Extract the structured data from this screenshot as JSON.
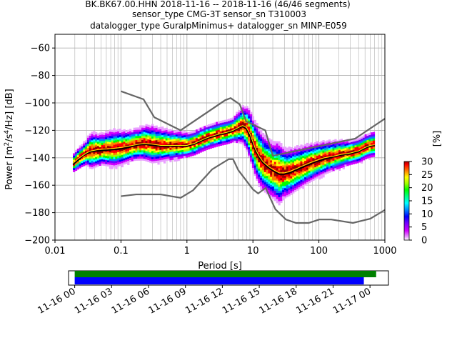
{
  "chart_data": {
    "type": "heatmap",
    "title_lines": [
      "BK.BK67.00.HHN   2018-11-16 -- 2018-11-16  (46/46 segments)",
      "sensor_type CMG-3T sensor_sn T310003",
      "datalogger_type GuralpMinimus+ datalogger_sn MINP-E059"
    ],
    "xlabel": "Period [s]",
    "ylabel_parts": [
      "Power [m",
      "2",
      "/s",
      "4",
      "/Hz] [dB]"
    ],
    "x_scale": "log",
    "xlim": [
      0.01,
      1000
    ],
    "ylim": [
      -200,
      -50
    ],
    "x_ticks": [
      {
        "value": 0.01,
        "label": "0.01"
      },
      {
        "value": 0.1,
        "label": "0.1"
      },
      {
        "value": 1,
        "label": "1"
      },
      {
        "value": 10,
        "label": "10"
      },
      {
        "value": 100,
        "label": "100"
      },
      {
        "value": 1000,
        "label": "1000"
      }
    ],
    "y_ticks": [
      {
        "value": -60,
        "label": "−60"
      },
      {
        "value": -80,
        "label": "−80"
      },
      {
        "value": -100,
        "label": "−100"
      },
      {
        "value": -120,
        "label": "−120"
      },
      {
        "value": -140,
        "label": "−140"
      },
      {
        "value": -160,
        "label": "−160"
      },
      {
        "value": -180,
        "label": "−180"
      },
      {
        "value": -200,
        "label": "−200"
      }
    ],
    "grid": true,
    "colorbar": {
      "label": "[%]",
      "range": [
        0,
        30
      ],
      "ticks": [
        {
          "value": 0,
          "label": "0"
        },
        {
          "value": 5,
          "label": "5"
        },
        {
          "value": 10,
          "label": "10"
        },
        {
          "value": 15,
          "label": "15"
        },
        {
          "value": 20,
          "label": "20"
        },
        {
          "value": 25,
          "label": "25"
        },
        {
          "value": 30,
          "label": "30"
        }
      ],
      "colormap": [
        "#ffffff",
        "#e9a0ff",
        "#d000ff",
        "#7000ff",
        "#0000ff",
        "#0080ff",
        "#00ffff",
        "#00ff80",
        "#00ff00",
        "#a0ff00",
        "#ffff00",
        "#ff8000",
        "#ff0000",
        "#990000"
      ]
    },
    "noise_models": {
      "high": [
        [
          0.1,
          -91.5
        ],
        [
          0.22,
          -97.4
        ],
        [
          0.32,
          -110.5
        ],
        [
          0.8,
          -120
        ],
        [
          3.8,
          -98
        ],
        [
          4.6,
          -96.5
        ],
        [
          6.3,
          -101
        ],
        [
          7.9,
          -113.5
        ],
        [
          15.4,
          -120
        ],
        [
          20,
          -138.5
        ],
        [
          354.8,
          -126
        ],
        [
          1000,
          -111.5
        ]
      ],
      "low": [
        [
          0.1,
          -168
        ],
        [
          0.17,
          -166.7
        ],
        [
          0.4,
          -166.7
        ],
        [
          0.8,
          -169.2
        ],
        [
          1.24,
          -163.7
        ],
        [
          2.4,
          -148.5
        ],
        [
          4.3,
          -141
        ],
        [
          5,
          -141
        ],
        [
          6,
          -149
        ],
        [
          10,
          -163
        ],
        [
          12,
          -166
        ],
        [
          15.6,
          -162
        ],
        [
          21.9,
          -177.5
        ],
        [
          31.6,
          -185
        ],
        [
          45,
          -187.5
        ],
        [
          70,
          -187.5
        ],
        [
          101,
          -185
        ],
        [
          154,
          -185
        ],
        [
          328,
          -187.5
        ],
        [
          600,
          -184.4
        ],
        [
          1000,
          -178
        ]
      ]
    },
    "mean_curve": [
      [
        0.0187,
        -145
      ],
      [
        0.022,
        -142
      ],
      [
        0.026,
        -139
      ],
      [
        0.03,
        -137
      ],
      [
        0.035,
        -135.5
      ],
      [
        0.045,
        -135
      ],
      [
        0.06,
        -134.5
      ],
      [
        0.08,
        -134
      ],
      [
        0.1,
        -133.5
      ],
      [
        0.13,
        -132.5
      ],
      [
        0.17,
        -131
      ],
      [
        0.22,
        -130
      ],
      [
        0.3,
        -131
      ],
      [
        0.4,
        -131.5
      ],
      [
        0.55,
        -131.5
      ],
      [
        0.75,
        -131.5
      ],
      [
        1.0,
        -131.5
      ],
      [
        1.3,
        -130
      ],
      [
        1.6,
        -128
      ],
      [
        2.0,
        -126
      ],
      [
        2.5,
        -124.5
      ],
      [
        3.2,
        -123
      ],
      [
        4.0,
        -122
      ],
      [
        5.0,
        -120.5
      ],
      [
        6.0,
        -118.5
      ],
      [
        7.0,
        -117
      ],
      [
        8.0,
        -119
      ],
      [
        9.0,
        -124
      ],
      [
        10.0,
        -130
      ],
      [
        11.0,
        -135
      ],
      [
        12.5,
        -140
      ],
      [
        14.0,
        -143.5
      ],
      [
        16.0,
        -146
      ],
      [
        18.0,
        -148
      ],
      [
        21.0,
        -150
      ],
      [
        25.0,
        -152
      ],
      [
        30.0,
        -152
      ],
      [
        36.0,
        -151
      ],
      [
        45.0,
        -149
      ],
      [
        56.0,
        -147
      ],
      [
        70.0,
        -145
      ],
      [
        90.0,
        -143
      ],
      [
        120.0,
        -141
      ],
      [
        160.0,
        -139.5
      ],
      [
        220.0,
        -138
      ],
      [
        300.0,
        -137
      ],
      [
        400.0,
        -135.5
      ],
      [
        500.0,
        -133
      ],
      [
        600.0,
        -131.5
      ],
      [
        700.0,
        -131
      ]
    ],
    "mode_curve": [
      [
        0.0187,
        -144
      ],
      [
        0.022,
        -141
      ],
      [
        0.026,
        -138.5
      ],
      [
        0.03,
        -136.5
      ],
      [
        0.035,
        -135
      ],
      [
        0.045,
        -134
      ],
      [
        0.06,
        -133.5
      ],
      [
        0.08,
        -133
      ],
      [
        0.1,
        -132.5
      ],
      [
        0.13,
        -131.5
      ],
      [
        0.17,
        -130.5
      ],
      [
        0.22,
        -129.5
      ],
      [
        0.3,
        -130
      ],
      [
        0.4,
        -131
      ],
      [
        0.55,
        -131
      ],
      [
        0.75,
        -131
      ],
      [
        1.0,
        -131
      ],
      [
        1.3,
        -129.5
      ],
      [
        1.6,
        -127.5
      ],
      [
        2.0,
        -125.5
      ],
      [
        2.5,
        -124
      ],
      [
        3.2,
        -122.5
      ],
      [
        4.0,
        -121.5
      ],
      [
        5.0,
        -120
      ],
      [
        6.0,
        -118
      ],
      [
        7.0,
        -116.5
      ],
      [
        8.0,
        -118
      ],
      [
        9.0,
        -122.5
      ],
      [
        10.0,
        -128.5
      ],
      [
        11.0,
        -134
      ],
      [
        12.5,
        -139
      ],
      [
        14.0,
        -142.5
      ],
      [
        16.0,
        -145
      ],
      [
        18.0,
        -147
      ],
      [
        21.0,
        -149
      ],
      [
        25.0,
        -151
      ],
      [
        30.0,
        -151
      ],
      [
        36.0,
        -150
      ],
      [
        45.0,
        -148
      ],
      [
        56.0,
        -146
      ],
      [
        70.0,
        -144
      ],
      [
        90.0,
        -142
      ],
      [
        120.0,
        -140
      ],
      [
        160.0,
        -139
      ],
      [
        220.0,
        -137.5
      ],
      [
        300.0,
        -136.5
      ],
      [
        400.0,
        -135
      ],
      [
        500.0,
        -132.5
      ],
      [
        600.0,
        -131
      ],
      [
        700.0,
        -130.5
      ]
    ],
    "spread_curve": [
      [
        0.0187,
        3
      ],
      [
        0.03,
        4
      ],
      [
        0.035,
        6
      ],
      [
        0.05,
        5
      ],
      [
        0.08,
        6
      ],
      [
        0.15,
        5
      ],
      [
        0.3,
        6
      ],
      [
        0.5,
        5
      ],
      [
        1.0,
        4
      ],
      [
        1.5,
        4
      ],
      [
        2.0,
        4
      ],
      [
        3.0,
        4
      ],
      [
        5.0,
        4
      ],
      [
        7.0,
        6
      ],
      [
        9.0,
        8
      ],
      [
        12.0,
        9
      ],
      [
        16.0,
        9
      ],
      [
        20.0,
        9
      ],
      [
        25.0,
        10
      ],
      [
        30.0,
        8
      ],
      [
        45.0,
        7
      ],
      [
        80.0,
        6
      ],
      [
        150.0,
        5
      ],
      [
        300.0,
        4
      ],
      [
        700.0,
        4
      ]
    ]
  },
  "temporal_coverage": {
    "x_ticks": [
      "11-16 00",
      "11-16 03",
      "11-16 06",
      "11-16 09",
      "11-16 12",
      "11-16 15",
      "11-16 18",
      "11-16 21",
      "11-17 00"
    ],
    "range_hours": [
      -0.5,
      25.5
    ],
    "data_span_hours": [
      0,
      24.5
    ],
    "gap_span_hours": [
      0,
      23.5
    ],
    "data_color": "#008000",
    "coverage_color": "#0000ff"
  }
}
